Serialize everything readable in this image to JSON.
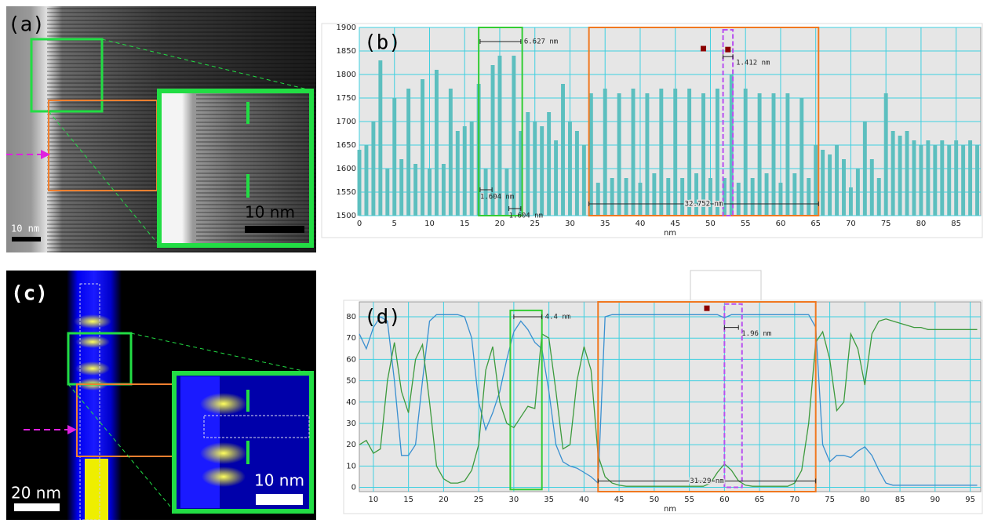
{
  "panels": {
    "a": {
      "label": "(a)",
      "scale_main": "10 nm",
      "scale_inset": "10 nm"
    },
    "c": {
      "label": "(c)",
      "scale_main": "20 nm",
      "scale_inset": "10 nm"
    }
  },
  "chart_data": [
    {
      "type": "bar",
      "label": "(b)",
      "x_label": "nm",
      "color": "#5cbfbf",
      "x": [
        0,
        1,
        2,
        3,
        4,
        5,
        6,
        7,
        8,
        9,
        10,
        11,
        12,
        13,
        14,
        15,
        16,
        17,
        18,
        19,
        20,
        21,
        22,
        23,
        24,
        25,
        26,
        27,
        28,
        29,
        30,
        31,
        32,
        33,
        34,
        35,
        36,
        37,
        38,
        39,
        40,
        41,
        42,
        43,
        44,
        45,
        46,
        47,
        48,
        49,
        50,
        51,
        52,
        53,
        54,
        55,
        56,
        57,
        58,
        59,
        60,
        61,
        62,
        63,
        64,
        65,
        66,
        67,
        68,
        69,
        70,
        71,
        72,
        73,
        74,
        75,
        76,
        77,
        78,
        79,
        80,
        81,
        82,
        83,
        84,
        85,
        86,
        87,
        88
      ],
      "values": [
        1640,
        1650,
        1700,
        1830,
        1600,
        1750,
        1620,
        1770,
        1610,
        1790,
        1600,
        1810,
        1610,
        1770,
        1680,
        1690,
        1700,
        1780,
        1600,
        1820,
        1840,
        1600,
        1840,
        1680,
        1720,
        1700,
        1690,
        1720,
        1660,
        1780,
        1700,
        1680,
        1650,
        1760,
        1570,
        1770,
        1580,
        1760,
        1580,
        1770,
        1570,
        1760,
        1590,
        1770,
        1580,
        1770,
        1580,
        1770,
        1590,
        1760,
        1580,
        1770,
        1580,
        1800,
        1570,
        1770,
        1580,
        1760,
        1590,
        1760,
        1570,
        1760,
        1590,
        1750,
        1580,
        1650,
        1640,
        1630,
        1650,
        1620,
        1560,
        1600,
        1700,
        1620,
        1580,
        1760,
        1680,
        1670,
        1680,
        1660,
        1650,
        1660,
        1650,
        1660,
        1650,
        1660,
        1650,
        1660,
        1650
      ],
      "xlim": [
        0,
        88.5
      ],
      "xticks": [
        0,
        5,
        10,
        15,
        20,
        25,
        30,
        35,
        40,
        45,
        50,
        55,
        60,
        65,
        70,
        75,
        80,
        85
      ],
      "ylim": [
        1500,
        1900
      ],
      "yticks": [
        1500,
        1550,
        1600,
        1650,
        1700,
        1750,
        1800,
        1850,
        1900
      ],
      "grid": true,
      "regions": [
        {
          "x": [
            17,
            23.2
          ],
          "y": [
            1500,
            1900
          ],
          "color": "#33cc33",
          "dashed": false
        },
        {
          "x": [
            32.7,
            65.4
          ],
          "y": [
            1500,
            1900
          ],
          "color": "#f07820",
          "dashed": false
        },
        {
          "x": [
            51.8,
            53.2
          ],
          "y": [
            1500,
            1895
          ],
          "color": "#b84ef0",
          "dashed": true
        }
      ],
      "markers": [
        {
          "x": 49,
          "y": 1855
        },
        {
          "x": 52.5,
          "y": 1853
        }
      ],
      "annotations": [
        {
          "text": "6.627 nm",
          "x": [
            17.2,
            23
          ],
          "y": 1870
        },
        {
          "text": "1.412 nm",
          "x": [
            51.8,
            53.2
          ],
          "y": 1838
        },
        {
          "text": "1.604 nm",
          "x": [
            17.2,
            18.9
          ],
          "y": 1555
        },
        {
          "text": "1.604 nm",
          "x": [
            21.3,
            23
          ],
          "y": 1515
        },
        {
          "text": "32.752 nm",
          "x": [
            32.7,
            65.4
          ],
          "y": 1525
        }
      ]
    },
    {
      "type": "line",
      "label": "(d)",
      "x_label": "nm",
      "x": [
        8,
        9,
        10,
        11,
        12,
        13,
        14,
        15,
        16,
        17,
        18,
        19,
        20,
        21,
        22,
        23,
        24,
        25,
        26,
        27,
        28,
        29,
        30,
        31,
        32,
        33,
        34,
        35,
        36,
        37,
        38,
        39,
        40,
        41,
        42,
        43,
        44,
        45,
        46,
        47,
        48,
        49,
        50,
        51,
        52,
        53,
        54,
        55,
        56,
        57,
        58,
        59,
        60,
        61,
        62,
        63,
        64,
        65,
        66,
        67,
        68,
        69,
        70,
        71,
        72,
        73,
        74,
        75,
        76,
        77,
        78,
        79,
        80,
        81,
        82,
        83,
        84,
        85,
        86,
        87,
        88,
        89,
        90,
        91,
        92,
        93,
        94,
        95,
        96
      ],
      "series": [
        {
          "color": "#3a8fd0",
          "values": [
            72,
            65,
            75,
            80,
            78,
            50,
            15,
            15,
            20,
            50,
            78,
            81,
            81,
            81,
            81,
            80,
            70,
            40,
            27,
            35,
            45,
            60,
            73,
            78,
            74,
            68,
            65,
            45,
            20,
            12,
            10,
            9,
            7,
            5,
            2,
            80,
            81,
            81,
            81,
            81,
            81,
            81,
            81,
            81,
            81,
            81,
            81,
            81,
            81,
            81,
            81,
            81,
            79.5,
            81,
            81,
            81,
            81,
            81,
            81,
            81,
            81,
            81,
            81,
            81,
            81,
            75,
            20,
            12,
            15,
            15,
            14,
            17,
            19,
            15,
            8,
            2,
            1,
            1,
            1,
            1,
            1,
            1,
            1,
            1,
            1,
            1,
            1,
            1,
            1
          ]
        },
        {
          "color": "#3d9a3d",
          "values": [
            20,
            22,
            16,
            18,
            50,
            68,
            45,
            35,
            60,
            67,
            40,
            10,
            4,
            2,
            2,
            3,
            8,
            20,
            55,
            66,
            40,
            30,
            28,
            33,
            38,
            37,
            72,
            70,
            45,
            18,
            20,
            50,
            66,
            55,
            15,
            5,
            2,
            1,
            0.5,
            0.5,
            0.5,
            0.5,
            0.5,
            0.5,
            0.5,
            0.5,
            0.5,
            0.5,
            0.5,
            0.5,
            2,
            7,
            11,
            8,
            3,
            1,
            0.5,
            0.5,
            0.5,
            0.5,
            0.5,
            0.5,
            2,
            8,
            30,
            68,
            73,
            60,
            36,
            40,
            72,
            65,
            48,
            72,
            78,
            79,
            78,
            77,
            76,
            75,
            75,
            74,
            74,
            74,
            74,
            74,
            74,
            74,
            74
          ]
        }
      ],
      "xlim": [
        8,
        96.5
      ],
      "xticks": [
        10,
        15,
        20,
        25,
        30,
        35,
        40,
        45,
        50,
        55,
        60,
        65,
        70,
        75,
        80,
        85,
        90,
        95
      ],
      "ylim": [
        -2,
        87
      ],
      "yticks": [
        0,
        10,
        20,
        30,
        40,
        50,
        60,
        70,
        80
      ],
      "grid": true,
      "regions": [
        {
          "x": [
            29.5,
            34
          ],
          "y": [
            -1,
            83
          ],
          "color": "#33cc33",
          "dashed": false
        },
        {
          "x": [
            42,
            73
          ],
          "y": [
            -2,
            87
          ],
          "color": "#f07820",
          "dashed": false
        },
        {
          "x": [
            60,
            62.5
          ],
          "y": [
            0,
            86
          ],
          "color": "#b84ef0",
          "dashed": true
        }
      ],
      "markers": [
        {
          "x": 57.5,
          "y": 84
        }
      ],
      "annotations": [
        {
          "text": "4.4 nm",
          "x": [
            30,
            34
          ],
          "y": 80
        },
        {
          "text": "1.96 nm",
          "x": [
            60,
            62
          ],
          "y": 75
        },
        {
          "text": "31.29 nm",
          "x": [
            42,
            73
          ],
          "y": 3
        }
      ]
    }
  ]
}
